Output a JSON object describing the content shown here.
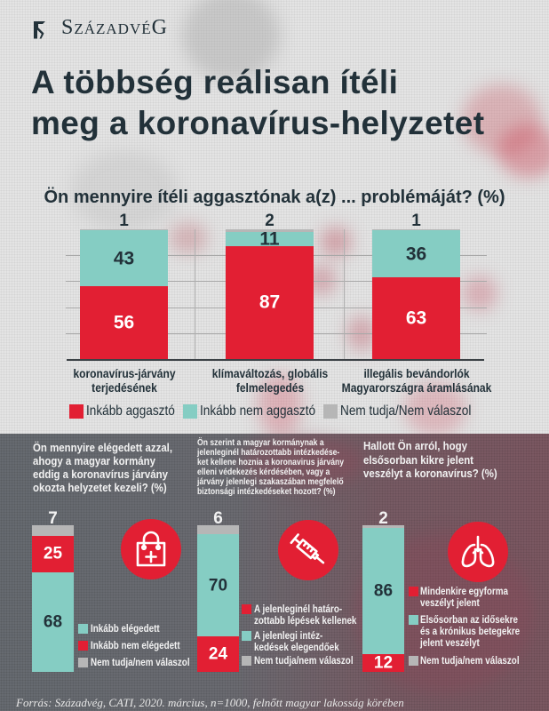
{
  "brand": {
    "name": "SzázadvéG"
  },
  "headline": {
    "line1": "A többség reálisan ítéli",
    "line2": "meg a koronavírus-helyzetet"
  },
  "colors": {
    "red": "#e21f33",
    "teal": "#85cdc3",
    "grey": "#b6b6b6",
    "dark_text": "#223139"
  },
  "chart_data": [
    {
      "type": "bar",
      "stacked": true,
      "title": "Ön mennyire ítéli aggasztónak a(z) ... problémáját? (%)",
      "categories": [
        "koronavírus-járvány\nterjedésének",
        "klímaváltozás, globális\nfelmelegedés",
        "illegális bevándorlók\nMagyarországra áramlásának"
      ],
      "series": [
        {
          "name": "Inkább aggasztó",
          "color": "#e21f33",
          "values": [
            56,
            87,
            63
          ]
        },
        {
          "name": "Inkább nem aggasztó",
          "color": "#85cdc3",
          "values": [
            43,
            11,
            36
          ]
        },
        {
          "name": "Nem tudja/Nem válaszol",
          "color": "#b6b6b6",
          "values": [
            1,
            2,
            1
          ]
        }
      ],
      "xlabel": "",
      "ylabel": "",
      "ylim": [
        0,
        100
      ],
      "grid": true,
      "legend": "bottom"
    },
    {
      "type": "bar",
      "stacked": true,
      "title": "Ön mennyire elégedett azzal,\nahogy a magyar kormány\neddig a koronavírus járvány\nokozta helyzetet kezeli? (%)",
      "categories": [
        ""
      ],
      "series": [
        {
          "name": "Inkább elégedett",
          "color": "#85cdc3",
          "values": [
            68
          ]
        },
        {
          "name": "Inkább nem elégedett",
          "color": "#e21f33",
          "values": [
            25
          ]
        },
        {
          "name": "Nem tudja/nem válaszol",
          "color": "#b6b6b6",
          "values": [
            7
          ]
        }
      ],
      "ylim": [
        0,
        100
      ],
      "grid": false,
      "legend": "right",
      "icon": "medical-bag-icon"
    },
    {
      "type": "bar",
      "stacked": true,
      "title": "Ön szerint a magyar kormánynak a\njelenleginél határozottabb intézkedése-\nket kellene hoznia a koronavirus járvány\nelleni védekezés kérdésében, vagy a\njárvány jelenlegi szakaszában megfelelő\nbiztonsági intézkedéseket hozott? (%)",
      "categories": [
        ""
      ],
      "series": [
        {
          "name": "A jelenleginél határo-\nzottabb lépések kellenek",
          "color": "#e21f33",
          "values": [
            24
          ]
        },
        {
          "name": "A jelenlegi intéz-\nkedések elegendőek",
          "color": "#85cdc3",
          "values": [
            70
          ]
        },
        {
          "name": "Nem tudja/nem válaszol",
          "color": "#b6b6b6",
          "values": [
            6
          ]
        }
      ],
      "ylim": [
        0,
        100
      ],
      "grid": false,
      "legend": "right",
      "icon": "syringe-icon"
    },
    {
      "type": "bar",
      "stacked": true,
      "title": "Hallott Ön arról, hogy\nelsősorban kikre jelent\nveszélyt a koronavírus? (%)",
      "categories": [
        ""
      ],
      "series": [
        {
          "name": "Mindenkire egyforma\nveszélyt jelent",
          "color": "#e21f33",
          "values": [
            12
          ]
        },
        {
          "name": "Elsősorban az idősekre\nés a krónikus betegekre\njelent veszélyt",
          "color": "#85cdc3",
          "values": [
            86
          ]
        },
        {
          "name": "Nem tudja/nem válaszol",
          "color": "#b6b6b6",
          "values": [
            2
          ]
        }
      ],
      "ylim": [
        0,
        100
      ],
      "grid": false,
      "legend": "right",
      "icon": "lungs-icon"
    }
  ],
  "footer": {
    "source": "Forrás: Századvég, CATI, 2020. március, n=1000, felnőtt magyar lakosság körében"
  }
}
